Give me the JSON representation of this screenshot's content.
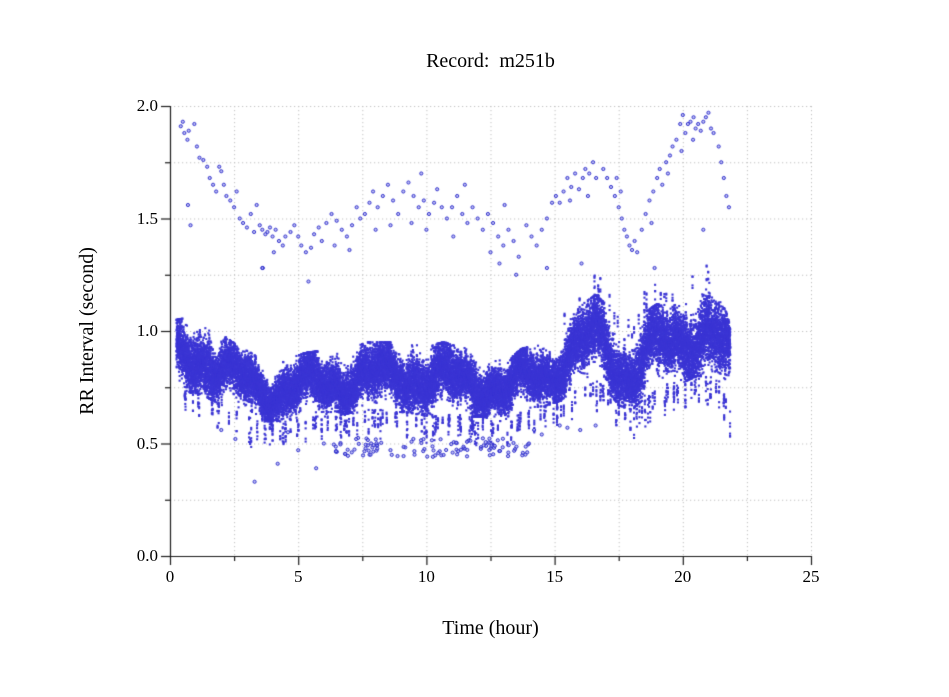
{
  "figure": {
    "background": "#ffffff"
  },
  "chart_data": {
    "type": "scatter",
    "title": "Record:  m251b",
    "xlabel": "Time (hour)",
    "ylabel": "RR Interval (second)",
    "xlim": [
      0,
      25
    ],
    "ylim": [
      0.0,
      2.0
    ],
    "x_major_ticks": [
      0,
      5,
      10,
      15,
      20,
      25
    ],
    "x_tick_labels": [
      "0",
      "5",
      "10",
      "15",
      "20",
      "25"
    ],
    "x_minor_step": 2.5,
    "y_major_ticks": [
      0.0,
      0.5,
      1.0,
      1.5,
      2.0
    ],
    "y_tick_labels": [
      "0.0",
      "0.5",
      "1.0",
      "1.5",
      "2.0"
    ],
    "y_minor_step": 0.25,
    "grid": {
      "show": true,
      "style": "dotted",
      "color": "#bfbfbf",
      "x_step": 2.5,
      "y_step": 0.25
    },
    "axis_color": "#1a1a1a",
    "marker": {
      "shape": "open-circle",
      "stroke": "#3232cc",
      "fill": "#8a8aea",
      "radius": 1.6
    },
    "band_color": "#3b35d4",
    "data_time_range_hours": [
      0.25,
      21.85
    ],
    "series": [
      {
        "name": "rr-dense-band",
        "kind": "generated-band",
        "seed": 20107,
        "t_start": 0.25,
        "t_end": 21.85,
        "columns_per_hour": 340,
        "points_per_column": 4,
        "envelope": [
          [
            0.25,
            0.74,
            1.05
          ],
          [
            0.7,
            0.73,
            1.06
          ],
          [
            1.2,
            0.72,
            1.04
          ],
          [
            1.7,
            0.69,
            1.01
          ],
          [
            2.2,
            0.66,
            0.97
          ],
          [
            2.7,
            0.64,
            0.93
          ],
          [
            3.2,
            0.61,
            0.9
          ],
          [
            3.7,
            0.6,
            0.86
          ],
          [
            4.2,
            0.6,
            0.85
          ],
          [
            4.7,
            0.61,
            0.88
          ],
          [
            5.2,
            0.62,
            0.9
          ],
          [
            5.7,
            0.62,
            0.91
          ],
          [
            6.2,
            0.62,
            0.9
          ],
          [
            6.7,
            0.63,
            0.92
          ],
          [
            7.2,
            0.64,
            0.93
          ],
          [
            7.7,
            0.65,
            0.95
          ],
          [
            8.2,
            0.65,
            0.95
          ],
          [
            8.7,
            0.64,
            0.95
          ],
          [
            9.2,
            0.64,
            0.96
          ],
          [
            9.7,
            0.63,
            0.95
          ],
          [
            10.2,
            0.62,
            0.94
          ],
          [
            10.7,
            0.63,
            0.95
          ],
          [
            11.2,
            0.63,
            0.93
          ],
          [
            11.7,
            0.62,
            0.92
          ],
          [
            12.2,
            0.62,
            0.91
          ],
          [
            12.7,
            0.6,
            0.88
          ],
          [
            13.2,
            0.6,
            0.87
          ],
          [
            13.7,
            0.64,
            0.92
          ],
          [
            14.2,
            0.66,
            0.94
          ],
          [
            14.7,
            0.67,
            0.95
          ],
          [
            15.2,
            0.69,
            0.99
          ],
          [
            15.7,
            0.73,
            1.07
          ],
          [
            16.2,
            0.76,
            1.13
          ],
          [
            16.6,
            0.78,
            1.16
          ],
          [
            17.0,
            0.75,
            1.12
          ],
          [
            17.5,
            0.67,
            0.99
          ],
          [
            18.0,
            0.65,
            0.96
          ],
          [
            18.5,
            0.7,
            1.08
          ],
          [
            19.0,
            0.74,
            1.12
          ],
          [
            19.5,
            0.75,
            1.1
          ],
          [
            20.0,
            0.77,
            1.14
          ],
          [
            20.5,
            0.8,
            1.2
          ],
          [
            21.0,
            0.8,
            1.22
          ],
          [
            21.4,
            0.78,
            1.15
          ],
          [
            21.7,
            0.7,
            1.08
          ],
          [
            21.85,
            0.65,
            1.02
          ]
        ]
      },
      {
        "name": "down-spikes",
        "kind": "spikes",
        "seed": 5511,
        "depth_range": [
          0.05,
          0.13
        ],
        "times": [
          1.1,
          1.9,
          2.6,
          3.4,
          4.0,
          4.5,
          5.0,
          5.65,
          6.15,
          6.65,
          7.15,
          7.6,
          8.0,
          8.45,
          8.85,
          9.25,
          9.6,
          10.0,
          10.45,
          10.9,
          11.3,
          11.8,
          12.2,
          12.6,
          13.55,
          14.0,
          14.6,
          15.1,
          15.8,
          16.4,
          16.9,
          17.4,
          17.75,
          18.2,
          18.9,
          19.3,
          19.65,
          20.1,
          20.5,
          20.9,
          21.3,
          21.6
        ]
      },
      {
        "name": "low-outlier-band",
        "kind": "generated-uniform",
        "seed": 777,
        "t_start": 6.3,
        "t_end": 14.0,
        "count": 115,
        "y_min": 0.44,
        "y_max": 0.525
      },
      {
        "name": "upper-cloud",
        "kind": "points",
        "points": [
          [
            0.42,
            1.91
          ],
          [
            0.5,
            1.93
          ],
          [
            0.56,
            1.88
          ],
          [
            0.68,
            1.85
          ],
          [
            0.73,
            1.89
          ],
          [
            0.95,
            1.92
          ],
          [
            1.05,
            1.82
          ],
          [
            1.15,
            1.77
          ],
          [
            0.7,
            1.56
          ],
          [
            0.8,
            1.47
          ],
          [
            1.3,
            1.76
          ],
          [
            1.45,
            1.73
          ],
          [
            1.55,
            1.68
          ],
          [
            1.68,
            1.65
          ],
          [
            1.8,
            1.62
          ],
          [
            1.92,
            1.73
          ],
          [
            2.0,
            1.71
          ],
          [
            2.1,
            1.65
          ],
          [
            2.2,
            1.6
          ],
          [
            2.35,
            1.58
          ],
          [
            2.5,
            1.55
          ],
          [
            2.6,
            1.62
          ],
          [
            2.72,
            1.5
          ],
          [
            2.85,
            1.48
          ],
          [
            3.0,
            1.46
          ],
          [
            3.15,
            1.52
          ],
          [
            3.28,
            1.44
          ],
          [
            3.38,
            1.56
          ],
          [
            3.5,
            1.47
          ],
          [
            3.6,
            1.45
          ],
          [
            3.72,
            1.43
          ],
          [
            3.8,
            1.44
          ],
          [
            3.9,
            1.46
          ],
          [
            4.0,
            1.42
          ],
          [
            4.12,
            1.45
          ],
          [
            4.25,
            1.4
          ],
          [
            4.4,
            1.38
          ],
          [
            4.5,
            1.42
          ],
          [
            3.62,
            1.28
          ],
          [
            4.05,
            1.35
          ],
          [
            4.7,
            1.44
          ],
          [
            4.85,
            1.47
          ],
          [
            5.0,
            1.42
          ],
          [
            5.12,
            1.38
          ],
          [
            5.3,
            1.35
          ],
          [
            5.5,
            1.37
          ],
          [
            5.62,
            1.43
          ],
          [
            5.8,
            1.46
          ],
          [
            5.92,
            1.4
          ],
          [
            6.1,
            1.48
          ],
          [
            6.3,
            1.52
          ],
          [
            6.5,
            1.49
          ],
          [
            6.7,
            1.45
          ],
          [
            6.9,
            1.42
          ],
          [
            7.1,
            1.47
          ],
          [
            7.28,
            1.55
          ],
          [
            7.42,
            1.5
          ],
          [
            6.42,
            1.38
          ],
          [
            7.0,
            1.36
          ],
          [
            7.6,
            1.52
          ],
          [
            7.78,
            1.57
          ],
          [
            7.92,
            1.62
          ],
          [
            8.1,
            1.55
          ],
          [
            8.3,
            1.6
          ],
          [
            8.5,
            1.65
          ],
          [
            8.7,
            1.58
          ],
          [
            8.9,
            1.52
          ],
          [
            8.02,
            1.45
          ],
          [
            8.6,
            1.47
          ],
          [
            9.1,
            1.62
          ],
          [
            9.3,
            1.66
          ],
          [
            9.5,
            1.6
          ],
          [
            9.7,
            1.55
          ],
          [
            9.9,
            1.58
          ],
          [
            10.1,
            1.52
          ],
          [
            10.3,
            1.57
          ],
          [
            10.42,
            1.63
          ],
          [
            9.42,
            1.48
          ],
          [
            10.0,
            1.45
          ],
          [
            9.8,
            1.7
          ],
          [
            10.6,
            1.55
          ],
          [
            10.8,
            1.5
          ],
          [
            11.0,
            1.55
          ],
          [
            11.2,
            1.6
          ],
          [
            11.4,
            1.52
          ],
          [
            11.6,
            1.48
          ],
          [
            11.8,
            1.55
          ],
          [
            12.0,
            1.5
          ],
          [
            11.05,
            1.42
          ],
          [
            11.5,
            1.65
          ],
          [
            12.2,
            1.45
          ],
          [
            12.4,
            1.52
          ],
          [
            12.6,
            1.48
          ],
          [
            12.8,
            1.42
          ],
          [
            13.0,
            1.38
          ],
          [
            13.2,
            1.45
          ],
          [
            13.4,
            1.4
          ],
          [
            13.6,
            1.33
          ],
          [
            12.5,
            1.35
          ],
          [
            13.05,
            1.56
          ],
          [
            13.9,
            1.47
          ],
          [
            14.1,
            1.42
          ],
          [
            14.3,
            1.38
          ],
          [
            14.5,
            1.45
          ],
          [
            14.7,
            1.5
          ],
          [
            14.9,
            1.57
          ],
          [
            15.05,
            1.6
          ],
          [
            15.2,
            1.57
          ],
          [
            15.35,
            1.62
          ],
          [
            15.5,
            1.68
          ],
          [
            15.65,
            1.64
          ],
          [
            15.8,
            1.7
          ],
          [
            15.95,
            1.63
          ],
          [
            16.1,
            1.68
          ],
          [
            16.2,
            1.72
          ],
          [
            16.35,
            1.7
          ],
          [
            16.5,
            1.75
          ],
          [
            16.62,
            1.68
          ],
          [
            15.6,
            1.58
          ],
          [
            16.3,
            1.6
          ],
          [
            16.9,
            1.72
          ],
          [
            17.05,
            1.68
          ],
          [
            17.2,
            1.64
          ],
          [
            17.35,
            1.6
          ],
          [
            17.5,
            1.55
          ],
          [
            17.62,
            1.5
          ],
          [
            17.72,
            1.45
          ],
          [
            17.82,
            1.42
          ],
          [
            17.92,
            1.38
          ],
          [
            18.02,
            1.36
          ],
          [
            18.12,
            1.4
          ],
          [
            18.22,
            1.35
          ],
          [
            17.42,
            1.68
          ],
          [
            17.58,
            1.62
          ],
          [
            18.4,
            1.45
          ],
          [
            18.55,
            1.52
          ],
          [
            18.7,
            1.58
          ],
          [
            18.85,
            1.62
          ],
          [
            19.0,
            1.68
          ],
          [
            19.1,
            1.72
          ],
          [
            19.2,
            1.65
          ],
          [
            19.35,
            1.75
          ],
          [
            19.5,
            1.78
          ],
          [
            19.6,
            1.82
          ],
          [
            19.75,
            1.85
          ],
          [
            19.42,
            1.7
          ],
          [
            18.78,
            1.48
          ],
          [
            19.9,
            1.92
          ],
          [
            19.95,
            1.8
          ],
          [
            20.0,
            1.96
          ],
          [
            20.1,
            1.88
          ],
          [
            20.2,
            1.92
          ],
          [
            20.3,
            1.93
          ],
          [
            20.42,
            1.95
          ],
          [
            20.5,
            1.9
          ],
          [
            20.6,
            1.92
          ],
          [
            20.7,
            1.89
          ],
          [
            20.8,
            1.93
          ],
          [
            20.9,
            1.95
          ],
          [
            21.0,
            1.97
          ],
          [
            21.1,
            1.9
          ],
          [
            21.2,
            1.88
          ],
          [
            20.4,
            1.85
          ],
          [
            20.8,
            1.45
          ],
          [
            21.4,
            1.82
          ],
          [
            21.5,
            1.75
          ],
          [
            21.6,
            1.68
          ],
          [
            21.7,
            1.6
          ],
          [
            21.8,
            1.55
          ]
        ]
      },
      {
        "name": "isolated-outliers",
        "kind": "points",
        "points": [
          [
            2.0,
            0.56
          ],
          [
            2.55,
            0.52
          ],
          [
            3.3,
            0.33
          ],
          [
            4.2,
            0.41
          ],
          [
            4.6,
            0.55
          ],
          [
            5.0,
            0.47
          ],
          [
            5.7,
            0.39
          ],
          [
            6.0,
            0.5
          ],
          [
            14.0,
            0.5
          ],
          [
            14.2,
            0.56
          ],
          [
            14.5,
            0.54
          ],
          [
            15.2,
            0.58
          ],
          [
            15.5,
            0.57
          ],
          [
            16.0,
            0.56
          ],
          [
            16.6,
            0.58
          ],
          [
            3.6,
            1.28
          ],
          [
            5.4,
            1.22
          ],
          [
            13.5,
            1.25
          ],
          [
            14.7,
            1.28
          ],
          [
            16.05,
            1.3
          ],
          [
            18.9,
            1.28
          ],
          [
            12.85,
            1.3
          ]
        ]
      }
    ]
  }
}
